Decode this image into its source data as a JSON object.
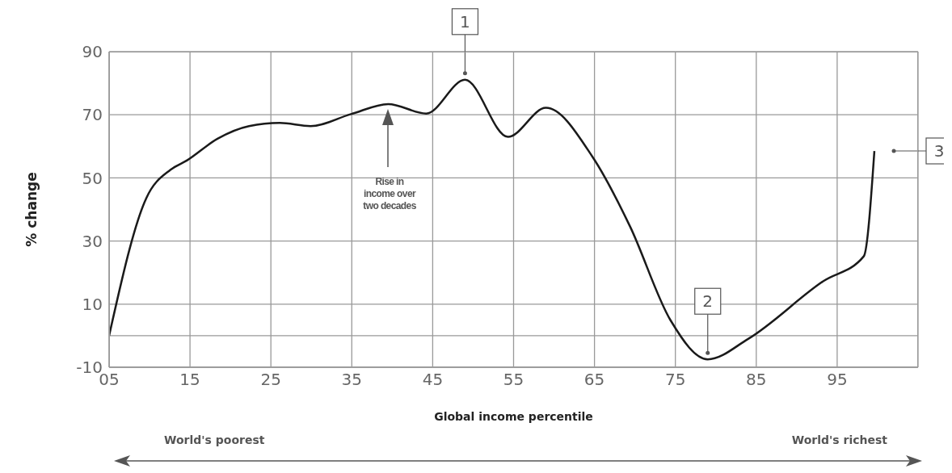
{
  "chart_data": {
    "type": "line",
    "xlabel": "Global income percentile",
    "ylabel": "% change",
    "x": [
      5,
      9.6,
      12.6,
      14.6,
      18.4,
      22.3,
      26.1,
      29.9,
      34.9,
      39.5,
      44.2,
      49,
      54.3,
      59,
      64.8,
      69.4,
      74.4,
      79,
      84,
      93.3,
      98.3,
      99.6
    ],
    "series": [
      {
        "color": "#1a1a1a",
        "values": [
          0,
          43.6,
          52.6,
          55.5,
          62.4,
          66.4,
          67.4,
          66.4,
          70.2,
          73.4,
          70.4,
          81.1,
          63,
          72.2,
          56.5,
          34.6,
          4.9,
          -7.5,
          -1,
          17.3,
          25.2,
          58.5
        ]
      }
    ],
    "xlim": [
      5,
      105
    ],
    "xticks": [
      {
        "value": 5,
        "label": "05"
      },
      15,
      25,
      35,
      45,
      55,
      65,
      75,
      85,
      95
    ],
    "ylim": [
      -10,
      90
    ],
    "yticks": [
      -10,
      {
        "value": 0,
        "label": null
      },
      10,
      30,
      50,
      70,
      90
    ],
    "grid": true,
    "marker": "none",
    "line_style": "solid",
    "annotations": [
      {
        "text": "1",
        "x": 49,
        "y": 81.1
      },
      {
        "text": "2",
        "x": 79,
        "y": -7.5
      },
      "3",
      "Rise in income over two decades",
      "World's poorest",
      "World's richest"
    ]
  }
}
